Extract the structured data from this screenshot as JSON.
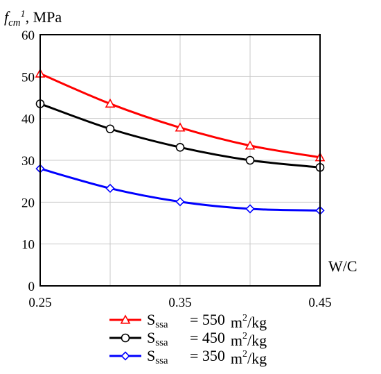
{
  "chart_data": {
    "type": "line",
    "ylabel": {
      "symbol": "f",
      "subscript": "cm",
      "superscript": "1",
      "unit": ", MPa"
    },
    "xlabel": "W/C",
    "xlim": [
      0.25,
      0.45
    ],
    "ylim": [
      0,
      60
    ],
    "x_ticks": [
      "0.25",
      "0.35",
      "0.45"
    ],
    "y_ticks": [
      "0",
      "10",
      "20",
      "30",
      "40",
      "50",
      "60"
    ],
    "x_grid": [
      0.25,
      0.3,
      0.35,
      0.4,
      0.45
    ],
    "y_grid": [
      0,
      10,
      20,
      30,
      40,
      50,
      60
    ],
    "grid": true,
    "legend_position": "bottom",
    "x": [
      0.25,
      0.3,
      0.35,
      0.4,
      0.45
    ],
    "series": [
      {
        "name_main": "S",
        "name_sub": "ssa",
        "name_value": "= 550",
        "name_unit": "m",
        "name_unit_sup": "2",
        "name_unit_tail": "/kg",
        "color": "#ff0000",
        "marker": "triangle",
        "values": [
          50.7,
          43.5,
          37.8,
          33.5,
          30.7
        ]
      },
      {
        "name_main": "S",
        "name_sub": "ssa",
        "name_value": "= 450",
        "name_unit": "m",
        "name_unit_sup": "2",
        "name_unit_tail": "/kg",
        "color": "#000000",
        "marker": "circle",
        "values": [
          43.5,
          37.5,
          33.1,
          30.0,
          28.3
        ]
      },
      {
        "name_main": "S",
        "name_sub": "ssa",
        "name_value": "= 350",
        "name_unit": "m",
        "name_unit_sup": "2",
        "name_unit_tail": "/kg",
        "color": "#0000ff",
        "marker": "diamond",
        "values": [
          28.0,
          23.3,
          20.1,
          18.4,
          18.0
        ]
      }
    ]
  }
}
